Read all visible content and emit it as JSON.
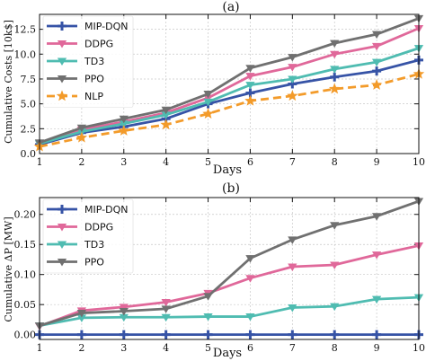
{
  "chart_data": [
    {
      "type": "line",
      "title": "(a)",
      "xlabel": "Days",
      "ylabel": "Cumulative Costs [10k$]",
      "x": [
        1,
        2,
        3,
        4,
        5,
        6,
        7,
        8,
        9,
        10
      ],
      "xlim": [
        1,
        10
      ],
      "ylim": [
        0,
        14
      ],
      "xticks": [
        "1",
        "2",
        "3",
        "4",
        "5",
        "6",
        "7",
        "8",
        "9",
        "10"
      ],
      "yticks": [
        0,
        2.5,
        5,
        7.5,
        10,
        12.5
      ],
      "ytick_labels": [
        "0.0",
        "2.5",
        "5.0",
        "7.5",
        "10.0",
        "12.5"
      ],
      "legend_position": "upper-left",
      "series": [
        {
          "name": "MIP-DQN",
          "color": "#3653a6",
          "marker": "plus",
          "dash": "solid",
          "values": [
            0.9,
            2.1,
            2.7,
            3.5,
            5.0,
            6.1,
            7.0,
            7.7,
            8.3,
            9.4
          ]
        },
        {
          "name": "DDPG",
          "color": "#e0689a",
          "marker": "triangle-down",
          "dash": "solid",
          "values": [
            1.0,
            2.4,
            3.2,
            4.1,
            5.6,
            7.8,
            8.7,
            10.0,
            10.8,
            12.6
          ]
        },
        {
          "name": "TD3",
          "color": "#4fbcb1",
          "marker": "triangle-down",
          "dash": "solid",
          "values": [
            1.0,
            2.2,
            3.0,
            3.9,
            5.2,
            6.9,
            7.5,
            8.5,
            9.2,
            10.6
          ]
        },
        {
          "name": "PPO",
          "color": "#707070",
          "marker": "triangle-down",
          "dash": "solid",
          "values": [
            1.1,
            2.6,
            3.5,
            4.4,
            6.0,
            8.6,
            9.7,
            11.1,
            12.0,
            13.6
          ]
        },
        {
          "name": "NLP",
          "color": "#f39b2a",
          "marker": "star",
          "dash": "dashed",
          "values": [
            0.7,
            1.6,
            2.3,
            2.9,
            4.0,
            5.3,
            5.8,
            6.5,
            6.9,
            8.0
          ]
        }
      ]
    },
    {
      "type": "line",
      "title": "(b)",
      "xlabel": "Days",
      "ylabel": "Cumulative ΔP [MW]",
      "x": [
        1,
        2,
        3,
        4,
        5,
        6,
        7,
        8,
        9,
        10
      ],
      "xlim": [
        1,
        10
      ],
      "ylim": [
        -0.008,
        0.228
      ],
      "xticks": [
        "1",
        "2",
        "3",
        "4",
        "5",
        "6",
        "7",
        "8",
        "9",
        "10"
      ],
      "yticks": [
        0.0,
        0.05,
        0.1,
        0.15,
        0.2
      ],
      "ytick_labels": [
        "0.00",
        "0.05",
        "0.10",
        "0.15",
        "0.20"
      ],
      "legend_position": "upper-left",
      "series": [
        {
          "name": "MIP-DQN",
          "color": "#3653a6",
          "marker": "plus",
          "dash": "solid",
          "values": [
            0,
            0,
            0,
            0,
            0,
            0,
            0,
            0,
            0,
            0
          ]
        },
        {
          "name": "DDPG",
          "color": "#e0689a",
          "marker": "triangle-down",
          "dash": "solid",
          "values": [
            0.014,
            0.04,
            0.046,
            0.054,
            0.069,
            0.094,
            0.113,
            0.116,
            0.133,
            0.148
          ]
        },
        {
          "name": "TD3",
          "color": "#4fbcb1",
          "marker": "triangle-down",
          "dash": "solid",
          "values": [
            0.015,
            0.028,
            0.029,
            0.029,
            0.03,
            0.03,
            0.045,
            0.047,
            0.059,
            0.062
          ]
        },
        {
          "name": "PPO",
          "color": "#707070",
          "marker": "triangle-down",
          "dash": "solid",
          "values": [
            0.015,
            0.036,
            0.039,
            0.043,
            0.064,
            0.127,
            0.158,
            0.182,
            0.197,
            0.222
          ]
        }
      ]
    }
  ]
}
